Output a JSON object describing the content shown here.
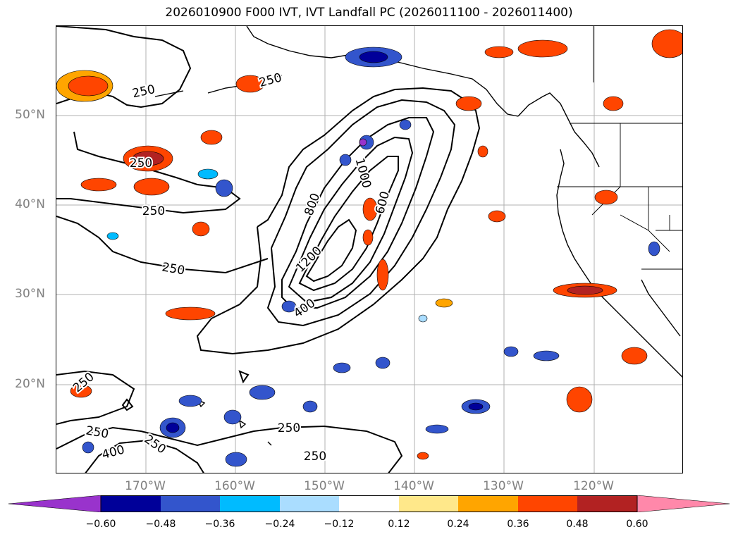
{
  "title": "2026010900 F000 IVT, IVT Landfall PC (2026011100 - 2026011400)",
  "axes": {
    "lat_labels": [
      "50°N",
      "40°N",
      "30°N",
      "20°N"
    ],
    "lon_labels": [
      "170°W",
      "160°W",
      "150°W",
      "140°W",
      "130°W",
      "120°W"
    ]
  },
  "contours": {
    "labels": [
      "250",
      "250",
      "250",
      "250",
      "250",
      "250",
      "250",
      "250",
      "250",
      "250",
      "400",
      "400",
      "600",
      "800",
      "1000",
      "1200"
    ]
  },
  "colorbar": {
    "ticks": [
      "−0.60",
      "−0.48",
      "−0.36",
      "−0.24",
      "−0.12",
      "0.12",
      "0.24",
      "0.36",
      "0.48",
      "0.60"
    ],
    "colors": [
      "#9933cc",
      "#000099",
      "#3355cc",
      "#00bbff",
      "#aaddff",
      "#ffffff",
      "#ffe88a",
      "#ffa500",
      "#ff4500",
      "#b22222",
      "#ff88aa"
    ]
  },
  "fill_colors": {
    "neg_dark": "#000099",
    "neg_mid": "#3355cc",
    "neg_light": "#00bbff",
    "neg_pale": "#aaddff",
    "pos_pale": "#ffe88a",
    "pos_mid": "#ffa500",
    "pos_strong": "#ff4500",
    "pos_dark": "#b22222"
  }
}
